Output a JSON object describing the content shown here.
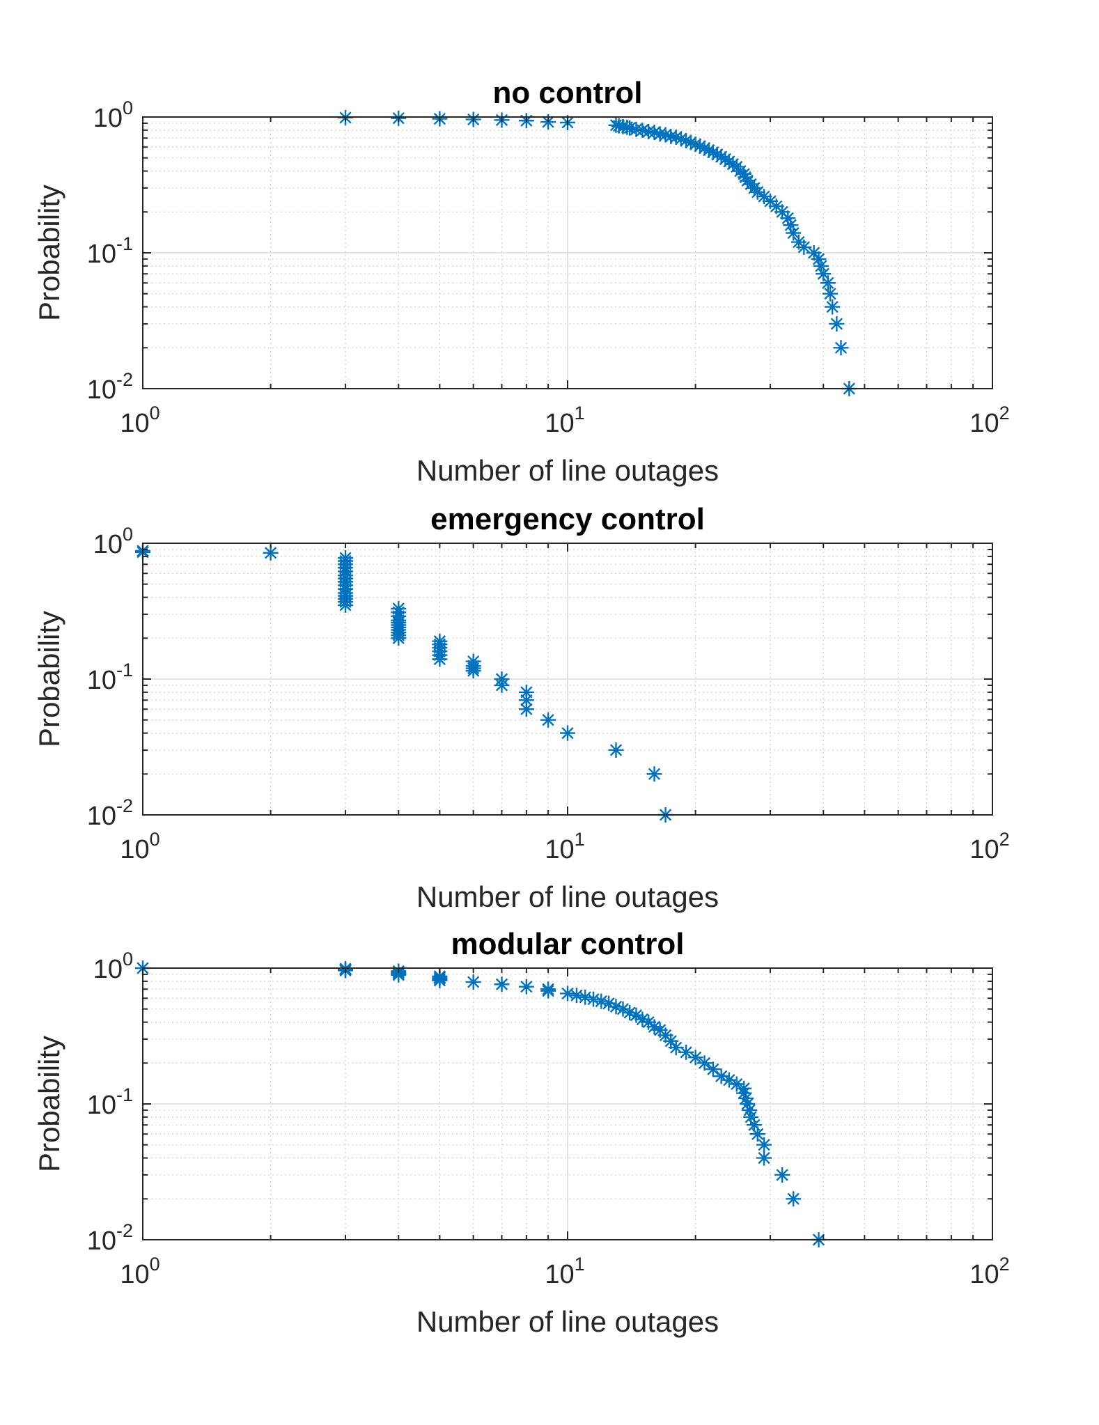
{
  "chart_data": [
    {
      "type": "scatter",
      "scale": "loglog",
      "title": "no control",
      "xlabel": "Number of line outages",
      "ylabel": "Probability",
      "xlim": [
        1,
        100
      ],
      "ylim": [
        0.01,
        1
      ],
      "grid": true,
      "marker": "asterisk",
      "color": "#0072bd",
      "x_ticks": [
        {
          "base": "10",
          "exp": "0"
        },
        {
          "base": "10",
          "exp": "1"
        },
        {
          "base": "10",
          "exp": "2"
        }
      ],
      "y_ticks": [
        {
          "base": "10",
          "exp": "-2"
        },
        {
          "base": "10",
          "exp": "-1"
        },
        {
          "base": "10",
          "exp": "0"
        }
      ],
      "points": [
        [
          3,
          0.99
        ],
        [
          4,
          0.98
        ],
        [
          5,
          0.97
        ],
        [
          6,
          0.96
        ],
        [
          7,
          0.95
        ],
        [
          8,
          0.94
        ],
        [
          9,
          0.92
        ],
        [
          10,
          0.91
        ],
        [
          13,
          0.87
        ],
        [
          13.2,
          0.86
        ],
        [
          13.5,
          0.85
        ],
        [
          13.8,
          0.84
        ],
        [
          14,
          0.83
        ],
        [
          14.5,
          0.81
        ],
        [
          15,
          0.8
        ],
        [
          15.5,
          0.78
        ],
        [
          16,
          0.77
        ],
        [
          16.5,
          0.75
        ],
        [
          17,
          0.74
        ],
        [
          17.5,
          0.72
        ],
        [
          18,
          0.71
        ],
        [
          18.5,
          0.69
        ],
        [
          19,
          0.67
        ],
        [
          19.5,
          0.65
        ],
        [
          20,
          0.63
        ],
        [
          20.5,
          0.61
        ],
        [
          21,
          0.59
        ],
        [
          21.5,
          0.57
        ],
        [
          22,
          0.55
        ],
        [
          22.5,
          0.53
        ],
        [
          23,
          0.51
        ],
        [
          23.5,
          0.49
        ],
        [
          24,
          0.47
        ],
        [
          24.5,
          0.45
        ],
        [
          25,
          0.43
        ],
        [
          25.5,
          0.4
        ],
        [
          26,
          0.38
        ],
        [
          26.2,
          0.36
        ],
        [
          26.5,
          0.34
        ],
        [
          27,
          0.32
        ],
        [
          27.5,
          0.3
        ],
        [
          28,
          0.28
        ],
        [
          29,
          0.26
        ],
        [
          30,
          0.24
        ],
        [
          31,
          0.22
        ],
        [
          32,
          0.2
        ],
        [
          33,
          0.18
        ],
        [
          33.5,
          0.16
        ],
        [
          34,
          0.14
        ],
        [
          35,
          0.12
        ],
        [
          36,
          0.11
        ],
        [
          38,
          0.1
        ],
        [
          39,
          0.09
        ],
        [
          39.5,
          0.08
        ],
        [
          40,
          0.07
        ],
        [
          41,
          0.06
        ],
        [
          41.5,
          0.05
        ],
        [
          42,
          0.04
        ],
        [
          43,
          0.03
        ],
        [
          44,
          0.02
        ],
        [
          46,
          0.01
        ]
      ]
    },
    {
      "type": "scatter",
      "scale": "loglog",
      "title": "emergency control",
      "xlabel": "Number of line outages",
      "ylabel": "Probability",
      "xlim": [
        1,
        100
      ],
      "ylim": [
        0.01,
        1
      ],
      "grid": true,
      "marker": "asterisk",
      "color": "#0072bd",
      "x_ticks": [
        {
          "base": "10",
          "exp": "0"
        },
        {
          "base": "10",
          "exp": "1"
        },
        {
          "base": "10",
          "exp": "2"
        }
      ],
      "y_ticks": [
        {
          "base": "10",
          "exp": "-2"
        },
        {
          "base": "10",
          "exp": "-1"
        },
        {
          "base": "10",
          "exp": "0"
        }
      ],
      "points": [
        [
          1,
          0.88
        ],
        [
          1,
          0.86
        ],
        [
          2,
          0.85
        ],
        [
          3,
          0.78
        ],
        [
          3,
          0.74
        ],
        [
          3,
          0.7
        ],
        [
          3,
          0.66
        ],
        [
          3,
          0.62
        ],
        [
          3,
          0.58
        ],
        [
          3,
          0.55
        ],
        [
          3,
          0.52
        ],
        [
          3,
          0.49
        ],
        [
          3,
          0.46
        ],
        [
          3,
          0.43
        ],
        [
          3,
          0.41
        ],
        [
          3,
          0.39
        ],
        [
          3,
          0.37
        ],
        [
          3,
          0.35
        ],
        [
          4,
          0.33
        ],
        [
          4,
          0.31
        ],
        [
          4,
          0.29
        ],
        [
          4,
          0.27
        ],
        [
          4,
          0.26
        ],
        [
          4,
          0.25
        ],
        [
          4,
          0.24
        ],
        [
          4,
          0.23
        ],
        [
          4,
          0.22
        ],
        [
          4,
          0.21
        ],
        [
          4,
          0.2
        ],
        [
          5,
          0.19
        ],
        [
          5,
          0.18
        ],
        [
          5,
          0.17
        ],
        [
          5,
          0.16
        ],
        [
          5,
          0.15
        ],
        [
          5,
          0.14
        ],
        [
          6,
          0.135
        ],
        [
          6,
          0.125
        ],
        [
          6,
          0.12
        ],
        [
          6,
          0.115
        ],
        [
          7,
          0.1
        ],
        [
          7,
          0.09
        ],
        [
          8,
          0.08
        ],
        [
          8,
          0.07
        ],
        [
          8,
          0.06
        ],
        [
          9,
          0.05
        ],
        [
          10,
          0.04
        ],
        [
          13,
          0.03
        ],
        [
          16,
          0.02
        ],
        [
          17,
          0.01
        ]
      ]
    },
    {
      "type": "scatter",
      "scale": "loglog",
      "title": "modular control",
      "xlabel": "Number of line outages",
      "ylabel": "Probability",
      "xlim": [
        1,
        100
      ],
      "ylim": [
        0.01,
        1
      ],
      "grid": true,
      "marker": "asterisk",
      "color": "#0072bd",
      "x_ticks": [
        {
          "base": "10",
          "exp": "0"
        },
        {
          "base": "10",
          "exp": "1"
        },
        {
          "base": "10",
          "exp": "2"
        }
      ],
      "y_ticks": [
        {
          "base": "10",
          "exp": "-2"
        },
        {
          "base": "10",
          "exp": "-1"
        },
        {
          "base": "10",
          "exp": "0"
        }
      ],
      "points": [
        [
          1,
          1.0
        ],
        [
          3,
          0.99
        ],
        [
          3,
          0.98
        ],
        [
          3,
          0.97
        ],
        [
          3,
          0.96
        ],
        [
          4,
          0.95
        ],
        [
          4,
          0.93
        ],
        [
          4,
          0.91
        ],
        [
          4,
          0.89
        ],
        [
          5,
          0.87
        ],
        [
          5,
          0.85
        ],
        [
          5,
          0.83
        ],
        [
          5,
          0.81
        ],
        [
          6,
          0.79
        ],
        [
          7,
          0.76
        ],
        [
          8,
          0.73
        ],
        [
          9,
          0.7
        ],
        [
          9,
          0.68
        ],
        [
          10,
          0.65
        ],
        [
          10.5,
          0.63
        ],
        [
          11,
          0.61
        ],
        [
          11.5,
          0.59
        ],
        [
          12,
          0.57
        ],
        [
          12.5,
          0.55
        ],
        [
          13,
          0.52
        ],
        [
          13.5,
          0.5
        ],
        [
          14,
          0.47
        ],
        [
          14.5,
          0.45
        ],
        [
          15,
          0.42
        ],
        [
          15.5,
          0.4
        ],
        [
          16,
          0.37
        ],
        [
          16.5,
          0.35
        ],
        [
          17,
          0.32
        ],
        [
          17.5,
          0.29
        ],
        [
          18,
          0.26
        ],
        [
          19,
          0.24
        ],
        [
          20,
          0.22
        ],
        [
          21,
          0.2
        ],
        [
          22,
          0.18
        ],
        [
          23,
          0.16
        ],
        [
          24,
          0.15
        ],
        [
          25,
          0.14
        ],
        [
          26,
          0.13
        ],
        [
          26,
          0.12
        ],
        [
          26.3,
          0.11
        ],
        [
          26.5,
          0.1
        ],
        [
          26.8,
          0.09
        ],
        [
          27,
          0.08
        ],
        [
          27.5,
          0.07
        ],
        [
          28,
          0.06
        ],
        [
          29,
          0.05
        ],
        [
          29,
          0.04
        ],
        [
          32,
          0.03
        ],
        [
          34,
          0.02
        ],
        [
          39,
          0.01
        ]
      ]
    }
  ]
}
